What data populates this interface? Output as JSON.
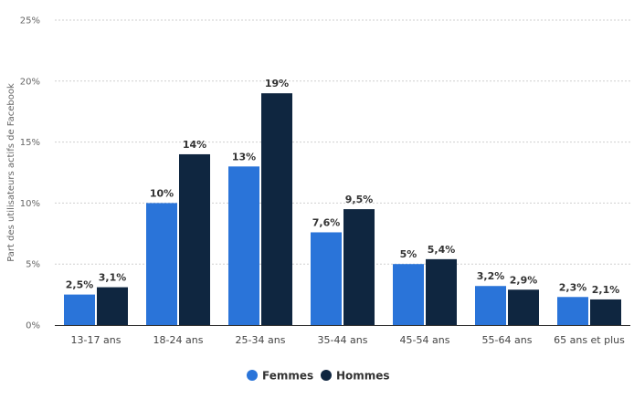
{
  "chart_data": {
    "type": "bar",
    "ylabel": "Part des utilisateurs actifs de Facebook",
    "ylim": [
      0,
      25
    ],
    "yticks": [
      "0%",
      "5%",
      "10%",
      "15%",
      "20%",
      "25%"
    ],
    "grid": true,
    "legend_position": "bottom",
    "categories": [
      "13-17 ans",
      "18-24 ans",
      "25-34 ans",
      "35-44 ans",
      "45-54 ans",
      "55-64 ans",
      "65 ans et plus"
    ],
    "series": [
      {
        "name": "Femmes",
        "color": "#2a74d9",
        "values": [
          2.5,
          10,
          13,
          7.6,
          5,
          3.2,
          2.3
        ],
        "labels": [
          "2,5%",
          "10%",
          "13%",
          "7,6%",
          "5%",
          "3,2%",
          "2,3%"
        ]
      },
      {
        "name": "Hommes",
        "color": "#0f2640",
        "values": [
          3.1,
          14,
          19,
          9.5,
          5.4,
          2.9,
          2.1
        ],
        "labels": [
          "3,1%",
          "14%",
          "19%",
          "9,5%",
          "5,4%",
          "2,9%",
          "2,1%"
        ]
      }
    ]
  }
}
